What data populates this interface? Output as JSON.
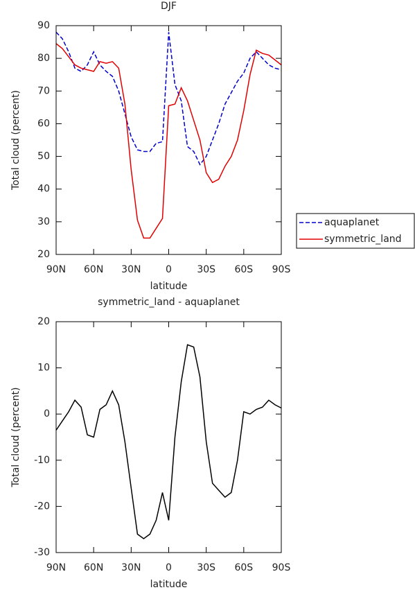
{
  "chart_data": [
    {
      "type": "line",
      "title": "DJF",
      "x_label": "latitude",
      "y_label": "Total cloud (percent)",
      "x": [
        90,
        85,
        80,
        75,
        70,
        65,
        60,
        55,
        50,
        45,
        40,
        35,
        30,
        25,
        20,
        15,
        10,
        5,
        0,
        -5,
        -10,
        -15,
        -20,
        -25,
        -30,
        -35,
        -40,
        -45,
        -50,
        -55,
        -60,
        -65,
        -70,
        -75,
        -80,
        -85,
        -90
      ],
      "series": [
        {
          "name": "aquaplanet",
          "color": "#0000cc",
          "dash": true,
          "values": [
            88,
            86,
            82,
            77,
            76,
            78,
            82,
            78,
            76,
            74.5,
            70,
            63,
            56,
            52,
            51.5,
            51.5,
            54,
            54.5,
            88,
            72,
            67,
            53,
            51.5,
            47.5,
            50,
            55,
            60,
            66,
            69.5,
            73,
            75.5,
            80,
            82,
            80,
            78,
            77,
            76.5
          ]
        },
        {
          "name": "symmetric_land",
          "color": "#e00000",
          "dash": false,
          "values": [
            84.5,
            83,
            80.5,
            78,
            77,
            76.5,
            76,
            79,
            78.5,
            79,
            77,
            66,
            46,
            30.5,
            25,
            25,
            28,
            31,
            65.5,
            66,
            71,
            67,
            61,
            55,
            45,
            42,
            43,
            47,
            50,
            55,
            64,
            75,
            82.5,
            81.5,
            81,
            79.5,
            78
          ]
        }
      ],
      "xlim": [
        90,
        -90
      ],
      "xticks": [
        {
          "value": 90,
          "label": "90N"
        },
        {
          "value": 60,
          "label": "60N"
        },
        {
          "value": 30,
          "label": "30N"
        },
        0,
        {
          "value": -30,
          "label": "30S"
        },
        {
          "value": -60,
          "label": "60S"
        },
        {
          "value": -90,
          "label": "90S"
        }
      ],
      "ylim": [
        20,
        90
      ],
      "yticks": [
        20,
        30,
        40,
        50,
        60,
        70,
        80,
        90
      ],
      "legend": "right"
    },
    {
      "type": "line",
      "title": "symmetric_land - aquaplanet",
      "x_label": "latitude",
      "y_label": "Total cloud (percent)",
      "x": [
        90,
        85,
        80,
        75,
        70,
        65,
        60,
        55,
        50,
        45,
        40,
        35,
        30,
        25,
        20,
        15,
        10,
        5,
        0,
        -5,
        -10,
        -15,
        -20,
        -25,
        -30,
        -35,
        -40,
        -45,
        -50,
        -55,
        -60,
        -65,
        -70,
        -75,
        -80,
        -85,
        -90
      ],
      "series": [
        {
          "color": "#000000",
          "dash": false,
          "values": [
            -3.5,
            -1.5,
            0.5,
            3,
            1.5,
            -4.5,
            -5,
            1,
            2,
            5,
            2,
            -6,
            -16,
            -26,
            -27,
            -26,
            -23,
            -17,
            -23,
            -5,
            7,
            15,
            14.5,
            8,
            -6,
            -15,
            -16.5,
            -18,
            -17,
            -10,
            0.5,
            0,
            1,
            1.5,
            3,
            2,
            1.3
          ]
        }
      ],
      "xlim": [
        90,
        -90
      ],
      "xticks": [
        {
          "value": 90,
          "label": "90N"
        },
        {
          "value": 60,
          "label": "60N"
        },
        {
          "value": 30,
          "label": "30N"
        },
        0,
        {
          "value": -30,
          "label": "30S"
        },
        {
          "value": -60,
          "label": "60S"
        },
        {
          "value": -90,
          "label": "90S"
        }
      ],
      "ylim": [
        -30,
        20
      ],
      "yticks": [
        -30,
        -20,
        -10,
        0,
        10,
        20
      ]
    }
  ]
}
